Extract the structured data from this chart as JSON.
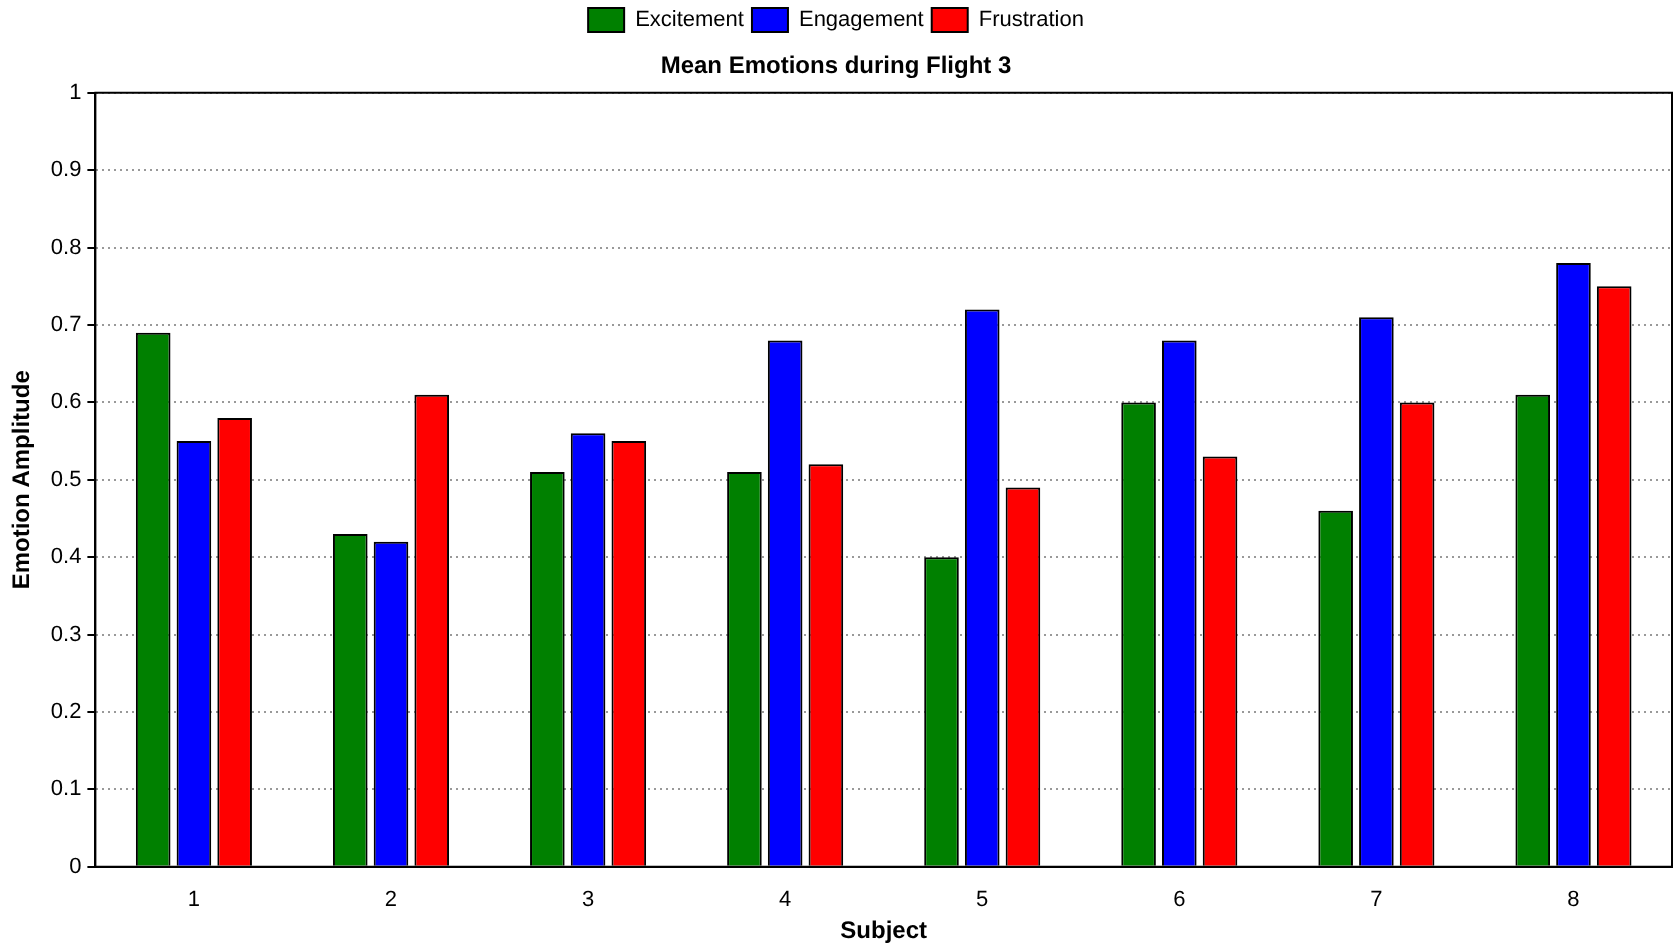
{
  "chart_data": {
    "type": "bar",
    "title": "Mean Emotions during Flight 3",
    "xlabel": "Subject",
    "ylabel": "Emotion Amplitude",
    "categories": [
      "1",
      "2",
      "3",
      "4",
      "5",
      "6",
      "7",
      "8"
    ],
    "series": [
      {
        "name": "Excitement",
        "color": "#008000",
        "values": [
          0.69,
          0.43,
          0.51,
          0.51,
          0.4,
          0.6,
          0.46,
          0.61
        ]
      },
      {
        "name": "Engagement",
        "color": "#0000ff",
        "values": [
          0.55,
          0.42,
          0.56,
          0.68,
          0.72,
          0.68,
          0.71,
          0.78
        ]
      },
      {
        "name": "Frustration",
        "color": "#ff0000",
        "values": [
          0.58,
          0.61,
          0.55,
          0.52,
          0.49,
          0.53,
          0.6,
          0.75
        ]
      }
    ],
    "ylim": [
      0,
      1
    ],
    "yticks": [
      0,
      0.1,
      0.2,
      0.3,
      0.4,
      0.5,
      0.6,
      0.7,
      0.8,
      0.9,
      1
    ],
    "grid": "y",
    "legend": "top"
  }
}
